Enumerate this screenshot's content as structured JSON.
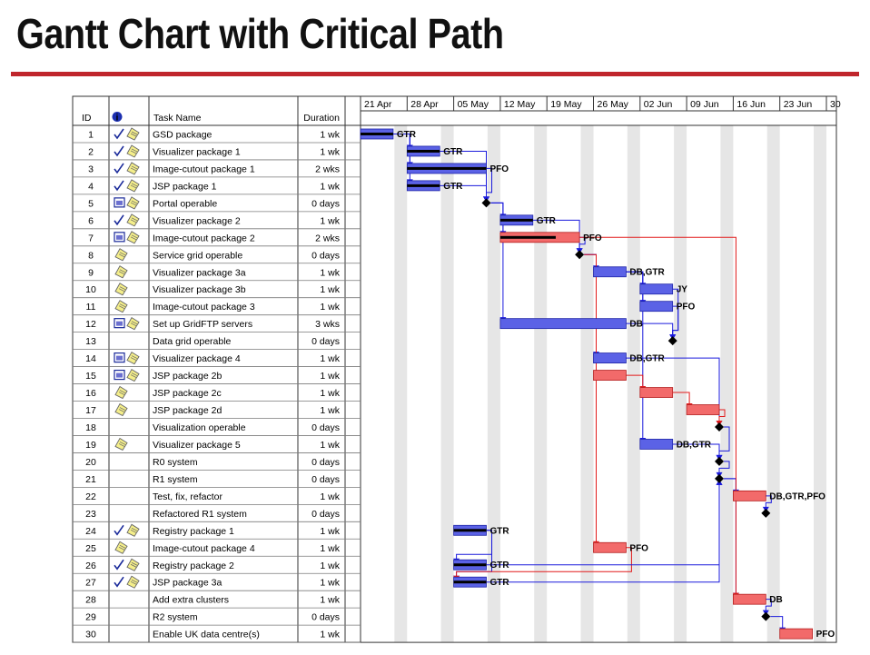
{
  "slide": {
    "title": "Gantt Chart with Critical Path"
  },
  "chart_data": {
    "type": "gantt",
    "columns": {
      "id": "ID",
      "info": "info-icon",
      "task_name": "Task Name",
      "duration": "Duration"
    },
    "timescale": [
      "21 Apr",
      "28 Apr",
      "05 May",
      "12 May",
      "19 May",
      "26 May",
      "02 Jun",
      "09 Jun",
      "16 Jun",
      "23 Jun",
      "30"
    ],
    "tasks": [
      {
        "id": "1",
        "name": "GSD package",
        "duration": "1 wk",
        "indicators": [
          "check",
          "note"
        ],
        "start": 0,
        "weeks": 0.7,
        "critical": false,
        "done": 1.0,
        "resources": "GTR"
      },
      {
        "id": "2",
        "name": "Visualizer package 1",
        "duration": "1 wk",
        "indicators": [
          "check",
          "note"
        ],
        "start": 1,
        "weeks": 0.7,
        "critical": false,
        "done": 1.0,
        "resources": "GTR"
      },
      {
        "id": "3",
        "name": "Image-cutout package 1",
        "duration": "2 wks",
        "indicators": [
          "check",
          "note"
        ],
        "start": 1,
        "weeks": 1.7,
        "critical": false,
        "done": 1.0,
        "resources": "PFO"
      },
      {
        "id": "4",
        "name": "JSP package 1",
        "duration": "1 wk",
        "indicators": [
          "check",
          "note"
        ],
        "start": 1,
        "weeks": 0.7,
        "critical": false,
        "done": 1.0,
        "resources": "GTR"
      },
      {
        "id": "5",
        "name": "Portal operable",
        "duration": "0 days",
        "indicators": [
          "calendar",
          "note"
        ],
        "start": 2.7,
        "weeks": 0,
        "critical": false,
        "done": 0,
        "resources": ""
      },
      {
        "id": "6",
        "name": "Visualizer package 2",
        "duration": "1 wk",
        "indicators": [
          "check",
          "note"
        ],
        "start": 3,
        "weeks": 0.7,
        "critical": false,
        "done": 1.0,
        "resources": "GTR"
      },
      {
        "id": "7",
        "name": "Image-cutout package 2",
        "duration": "2 wks",
        "indicators": [
          "calendar",
          "note"
        ],
        "start": 3,
        "weeks": 1.7,
        "critical": true,
        "done": 0.7,
        "resources": "PFO"
      },
      {
        "id": "8",
        "name": "Service grid operable",
        "duration": "0 days",
        "indicators": [
          "note"
        ],
        "start": 4.7,
        "weeks": 0,
        "critical": false,
        "done": 0,
        "resources": ""
      },
      {
        "id": "9",
        "name": "Visualizer package 3a",
        "duration": "1 wk",
        "indicators": [
          "note"
        ],
        "start": 5,
        "weeks": 0.7,
        "critical": false,
        "done": 0,
        "resources": "DB,GTR"
      },
      {
        "id": "10",
        "name": "Visualizer package 3b",
        "duration": "1 wk",
        "indicators": [
          "note"
        ],
        "start": 6,
        "weeks": 0.7,
        "critical": false,
        "done": 0,
        "resources": "JY"
      },
      {
        "id": "11",
        "name": "Image-cutout package 3",
        "duration": "1 wk",
        "indicators": [
          "note"
        ],
        "start": 6,
        "weeks": 0.7,
        "critical": false,
        "done": 0,
        "resources": "PFO"
      },
      {
        "id": "12",
        "name": "Set up GridFTP servers",
        "duration": "3 wks",
        "indicators": [
          "calendar",
          "note"
        ],
        "start": 3,
        "weeks": 2.7,
        "critical": false,
        "done": 0,
        "resources": "DB"
      },
      {
        "id": "13",
        "name": "Data grid operable",
        "duration": "0 days",
        "indicators": [],
        "start": 6.7,
        "weeks": 0,
        "critical": false,
        "done": 0,
        "resources": ""
      },
      {
        "id": "14",
        "name": "Visualizer package 4",
        "duration": "1 wk",
        "indicators": [
          "calendar",
          "note"
        ],
        "start": 5,
        "weeks": 0.7,
        "critical": false,
        "done": 0,
        "resources": "DB,GTR"
      },
      {
        "id": "15",
        "name": "JSP package 2b",
        "duration": "1 wk",
        "indicators": [
          "calendar",
          "note"
        ],
        "start": 5,
        "weeks": 0.7,
        "critical": true,
        "done": 0,
        "resources": ""
      },
      {
        "id": "16",
        "name": "JSP package 2c",
        "duration": "1 wk",
        "indicators": [
          "note"
        ],
        "start": 6,
        "weeks": 0.7,
        "critical": true,
        "done": 0,
        "resources": ""
      },
      {
        "id": "17",
        "name": "JSP package 2d",
        "duration": "1 wk",
        "indicators": [
          "note"
        ],
        "start": 7,
        "weeks": 0.7,
        "critical": true,
        "done": 0,
        "resources": ""
      },
      {
        "id": "18",
        "name": "Visualization operable",
        "duration": "0 days",
        "indicators": [],
        "start": 7.7,
        "weeks": 0,
        "critical": false,
        "done": 0,
        "resources": ""
      },
      {
        "id": "19",
        "name": "Visualizer package 5",
        "duration": "1 wk",
        "indicators": [
          "note"
        ],
        "start": 6,
        "weeks": 0.7,
        "critical": false,
        "done": 0,
        "resources": "DB,GTR"
      },
      {
        "id": "20",
        "name": "R0 system",
        "duration": "0 days",
        "indicators": [],
        "start": 7.7,
        "weeks": 0,
        "critical": false,
        "done": 0,
        "resources": ""
      },
      {
        "id": "21",
        "name": "R1 system",
        "duration": "0 days",
        "indicators": [],
        "start": 7.7,
        "weeks": 0,
        "critical": false,
        "done": 0,
        "resources": ""
      },
      {
        "id": "22",
        "name": "Test, fix, refactor",
        "duration": "1 wk",
        "indicators": [],
        "start": 8,
        "weeks": 0.7,
        "critical": true,
        "done": 0,
        "resources": "DB,GTR,PFO"
      },
      {
        "id": "23",
        "name": "Refactored R1 system",
        "duration": "0 days",
        "indicators": [],
        "start": 8.7,
        "weeks": 0,
        "critical": false,
        "done": 0,
        "resources": ""
      },
      {
        "id": "24",
        "name": "Registry package 1",
        "duration": "1 wk",
        "indicators": [
          "check",
          "note"
        ],
        "start": 2,
        "weeks": 0.7,
        "critical": false,
        "done": 1.0,
        "resources": "GTR"
      },
      {
        "id": "25",
        "name": "Image-cutout package 4",
        "duration": "1 wk",
        "indicators": [
          "note"
        ],
        "start": 5,
        "weeks": 0.7,
        "critical": true,
        "done": 0,
        "resources": "PFO"
      },
      {
        "id": "26",
        "name": "Registry package 2",
        "duration": "1 wk",
        "indicators": [
          "check",
          "note"
        ],
        "start": 2,
        "weeks": 0.7,
        "critical": false,
        "done": 1.0,
        "resources": "GTR"
      },
      {
        "id": "27",
        "name": "JSP package 3a",
        "duration": "1 wk",
        "indicators": [
          "check",
          "note"
        ],
        "start": 2,
        "weeks": 0.7,
        "critical": false,
        "done": 1.0,
        "resources": "GTR"
      },
      {
        "id": "28",
        "name": "Add extra clusters",
        "duration": "1 wk",
        "indicators": [],
        "start": 8,
        "weeks": 0.7,
        "critical": true,
        "done": 0,
        "resources": "DB"
      },
      {
        "id": "29",
        "name": "R2 system",
        "duration": "0 days",
        "indicators": [],
        "start": 8.7,
        "weeks": 0,
        "critical": false,
        "done": 0,
        "resources": ""
      },
      {
        "id": "30",
        "name": "Enable UK data centre(s)",
        "duration": "1 wk",
        "indicators": [],
        "start": 9,
        "weeks": 0.7,
        "critical": true,
        "done": 0,
        "resources": "PFO"
      }
    ],
    "links": [
      {
        "from": "1",
        "to": "2",
        "critical": false
      },
      {
        "from": "1",
        "to": "3",
        "critical": false
      },
      {
        "from": "1",
        "to": "4",
        "critical": false
      },
      {
        "from": "2",
        "to": "5",
        "critical": false
      },
      {
        "from": "3",
        "to": "5",
        "critical": false
      },
      {
        "from": "4",
        "to": "5",
        "critical": false
      },
      {
        "from": "5",
        "to": "6",
        "critical": false
      },
      {
        "from": "5",
        "to": "7",
        "critical": false
      },
      {
        "from": "5",
        "to": "12",
        "critical": false
      },
      {
        "from": "6",
        "to": "8",
        "critical": false
      },
      {
        "from": "7",
        "to": "8",
        "critical": false
      },
      {
        "from": "8",
        "to": "9",
        "critical": false
      },
      {
        "from": "8",
        "to": "14",
        "critical": false
      },
      {
        "from": "8",
        "to": "25",
        "critical": true
      },
      {
        "from": "9",
        "to": "10",
        "critical": false
      },
      {
        "from": "9",
        "to": "11",
        "critical": false
      },
      {
        "from": "9",
        "to": "19",
        "critical": false
      },
      {
        "from": "10",
        "to": "13",
        "critical": false
      },
      {
        "from": "11",
        "to": "13",
        "critical": false
      },
      {
        "from": "12",
        "to": "13",
        "critical": false
      },
      {
        "from": "14",
        "to": "18",
        "critical": false
      },
      {
        "from": "15",
        "to": "16",
        "critical": true
      },
      {
        "from": "16",
        "to": "17",
        "critical": true
      },
      {
        "from": "17",
        "to": "18",
        "critical": true
      },
      {
        "from": "18",
        "to": "20",
        "critical": false
      },
      {
        "from": "19",
        "to": "20",
        "critical": false
      },
      {
        "from": "20",
        "to": "21",
        "critical": false
      },
      {
        "from": "21",
        "to": "22",
        "critical": false
      },
      {
        "from": "22",
        "to": "23",
        "critical": false
      },
      {
        "from": "21",
        "to": "28",
        "critical": false
      },
      {
        "from": "28",
        "to": "29",
        "critical": false
      },
      {
        "from": "29",
        "to": "30",
        "critical": false
      },
      {
        "from": "24",
        "to": "26",
        "critical": false
      },
      {
        "from": "24",
        "to": "27",
        "critical": false
      },
      {
        "from": "25",
        "to": "27",
        "critical": true
      },
      {
        "from": "26",
        "to": "21",
        "critical": false
      },
      {
        "from": "27",
        "to": "21",
        "critical": false
      },
      {
        "from": "7",
        "to": "28",
        "critical": true
      }
    ],
    "colors": {
      "normal": "#5b62e6",
      "critical": "#f26a6a",
      "progress": "#000000",
      "link": "#1a1adc",
      "critical_link": "#e21a1a",
      "milestone": "#000000",
      "text": "#000000"
    }
  }
}
